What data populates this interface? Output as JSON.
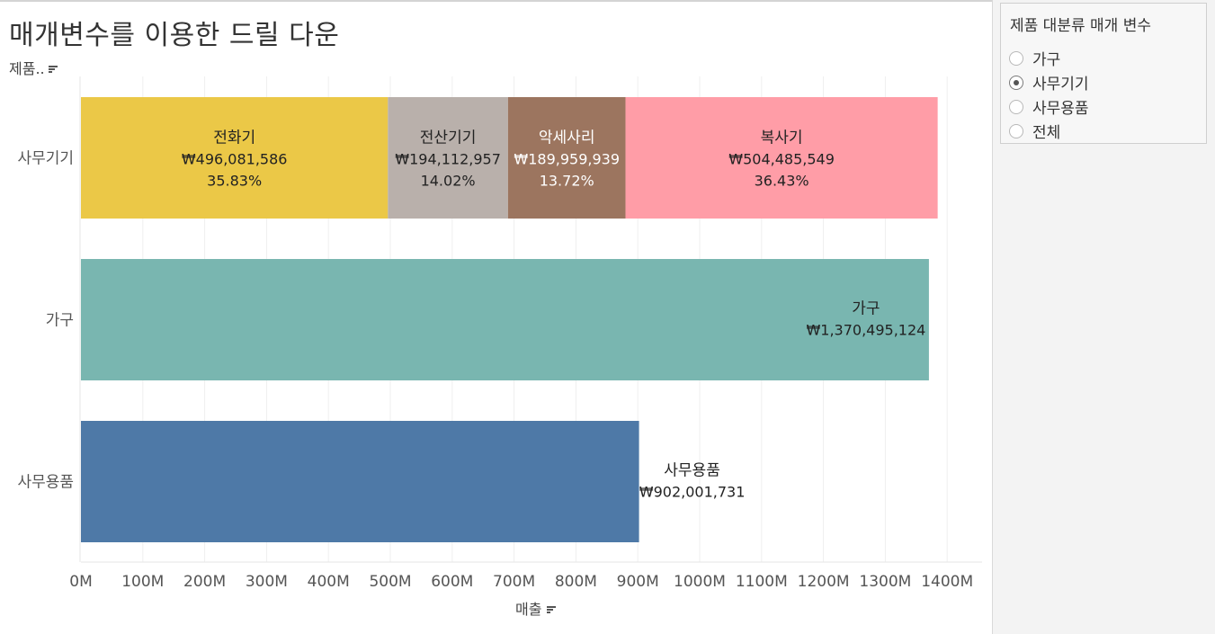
{
  "title": "매개변수를 이용한 드릴 다운",
  "row_header": "제품..",
  "param": {
    "title": "제품 대분류 매개 변수",
    "options": [
      "가구",
      "사무기기",
      "사무용품",
      "전체"
    ],
    "selected": "사무기기"
  },
  "chart_data": {
    "type": "bar",
    "orientation": "horizontal",
    "stacked": true,
    "xlabel": "매출",
    "xlim": [
      0,
      1450000000
    ],
    "x_ticks": [
      {
        "value": 0,
        "label": "0M"
      },
      {
        "value": 100000000,
        "label": "100M"
      },
      {
        "value": 200000000,
        "label": "200M"
      },
      {
        "value": 300000000,
        "label": "300M"
      },
      {
        "value": 400000000,
        "label": "400M"
      },
      {
        "value": 500000000,
        "label": "500M"
      },
      {
        "value": 600000000,
        "label": "600M"
      },
      {
        "value": 700000000,
        "label": "700M"
      },
      {
        "value": 800000000,
        "label": "800M"
      },
      {
        "value": 900000000,
        "label": "900M"
      },
      {
        "value": 1000000000,
        "label": "1000M"
      },
      {
        "value": 1100000000,
        "label": "1100M"
      },
      {
        "value": 1200000000,
        "label": "1200M"
      },
      {
        "value": 1300000000,
        "label": "1300M"
      },
      {
        "value": 1400000000,
        "label": "1400M"
      }
    ],
    "grid": true,
    "categories": [
      "사무기기",
      "가구",
      "사무용품"
    ],
    "segments": [
      {
        "category": "사무기기",
        "name": "전화기",
        "value": 496081586,
        "value_label": "₩496,081,586",
        "pct_label": "35.83%",
        "color": "#ebc847",
        "text_color": "#222222"
      },
      {
        "category": "사무기기",
        "name": "전산기기",
        "value": 194112957,
        "value_label": "₩194,112,957",
        "pct_label": "14.02%",
        "color": "#b9b0ab",
        "text_color": "#222222"
      },
      {
        "category": "사무기기",
        "name": "악세사리",
        "value": 189959939,
        "value_label": "₩189,959,939",
        "pct_label": "13.72%",
        "color": "#9c755f",
        "text_color": "#ffffff"
      },
      {
        "category": "사무기기",
        "name": "복사기",
        "value": 504485549,
        "value_label": "₩504,485,549",
        "pct_label": "36.43%",
        "color": "#ff9da7",
        "text_color": "#222222"
      },
      {
        "category": "가구",
        "name": "가구",
        "value": 1370495124,
        "value_label": "₩1,370,495,124",
        "pct_label": "",
        "color": "#79b6b0",
        "text_color": "#222222"
      },
      {
        "category": "사무용품",
        "name": "사무용품",
        "value": 902001731,
        "value_label": "₩902,001,731",
        "pct_label": "",
        "color": "#4e79a7",
        "text_color": "#222222"
      }
    ]
  }
}
